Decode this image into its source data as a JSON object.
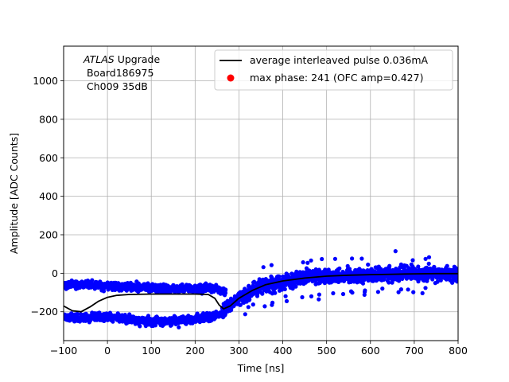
{
  "chart_data": {
    "type": "scatter",
    "title": "",
    "xlabel": "Time [ns]",
    "ylabel": "Amplitude [ADC Counts]",
    "xlim": [
      -100,
      800
    ],
    "ylim": [
      -350,
      1180
    ],
    "xticks": [
      -100,
      0,
      100,
      200,
      300,
      400,
      500,
      600,
      700,
      800
    ],
    "yticks": [
      -200,
      0,
      200,
      400,
      600,
      800,
      1000
    ],
    "grid": true,
    "legend_position": "top-right",
    "annotation": {
      "italic": "ATLAS",
      "line1_rest": " Upgrade",
      "line2": " Board186975",
      "line3": " Ch009 35dB"
    },
    "series": [
      {
        "name": "average interleaved pulse 0.036mA",
        "kind": "line",
        "color": "#000000",
        "x": [
          -100,
          -80,
          -60,
          -40,
          -20,
          0,
          20,
          50,
          100,
          150,
          200,
          230,
          245,
          255,
          265,
          280,
          300,
          330,
          360,
          400,
          450,
          500,
          550,
          600,
          650,
          700,
          750,
          800
        ],
        "y": [
          -170,
          -195,
          -200,
          -175,
          -145,
          -125,
          -115,
          -110,
          -108,
          -108,
          -108,
          -110,
          -130,
          -165,
          -185,
          -170,
          -130,
          -90,
          -60,
          -40,
          -25,
          -15,
          -10,
          -7,
          -5,
          -3,
          -2,
          -2
        ]
      },
      {
        "name": "max phase: 241 (OFC amp=0.427)",
        "kind": "marker",
        "color": "#ff0000",
        "x": [],
        "y": []
      },
      {
        "name": "",
        "kind": "scatter",
        "color": "#0000ff",
        "x_range": [
          -100,
          800
        ],
        "bands": [
          {
            "x": [
              -100,
              -60,
              0,
              50,
              100,
              150,
              200,
              250,
              270
            ],
            "y": [
              -60,
              -55,
              -65,
              -70,
              -75,
              -80,
              -80,
              -80,
              -100
            ]
          },
          {
            "x": [
              -100,
              -60,
              -20,
              0,
              50,
              100,
              150,
              200,
              250,
              270
            ],
            "y": [
              -230,
              -235,
              -225,
              -225,
              -240,
              -250,
              -250,
              -240,
              -220,
              -200
            ]
          }
        ],
        "trend": {
          "x": [
            270,
            300,
            330,
            360,
            400,
            450,
            500,
            600,
            700,
            800
          ],
          "y": [
            -180,
            -130,
            -90,
            -60,
            -40,
            -25,
            -15,
            -7,
            -3,
            -2
          ]
        }
      }
    ]
  }
}
